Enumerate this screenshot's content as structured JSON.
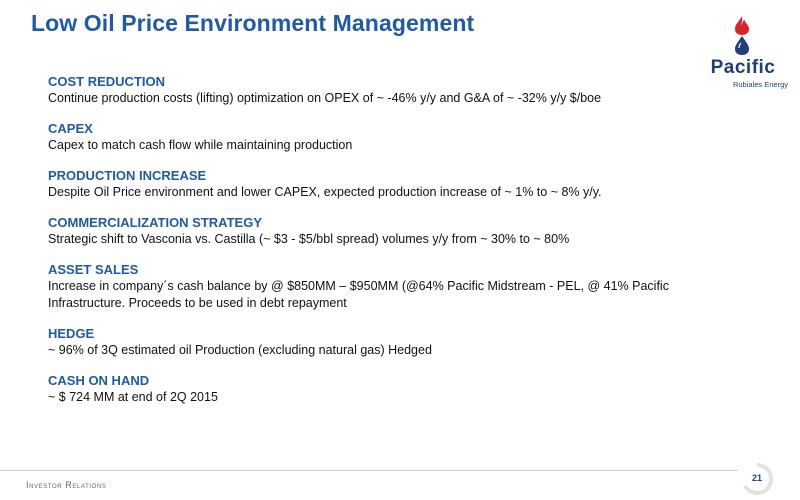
{
  "title": "Low Oil Price Environment Management",
  "logo": {
    "word": "Pacific",
    "subtitle": "Rubiales Energy",
    "colors": {
      "flame_red": "#d6262b",
      "drop_blue": "#1e3f78"
    }
  },
  "sections": [
    {
      "heading": "COST REDUCTION",
      "text": "Continue production costs (lifting) optimization on OPEX of ~ -46% y/y and G&A of ~ -32% y/y $/boe"
    },
    {
      "heading": "CAPEX",
      "text": "Capex to match cash flow while maintaining production"
    },
    {
      "heading": "PRODUCTION INCREASE",
      "text": "Despite Oil Price environment and lower CAPEX, expected production increase of ~ 1% to ~ 8% y/y."
    },
    {
      "heading": "COMMERCIALIZATION STRATEGY",
      "text": "Strategic shift to Vasconia vs. Castilla (~ $3 - $5/bbl spread) volumes y/y from ~ 30% to ~ 80%"
    },
    {
      "heading": "ASSET SALES",
      "text": "Increase in company´s cash balance by @ $850MM – $950MM (@64% Pacific Midstream - PEL, @ 41% Pacific Infrastructure. Proceeds to be used in debt repayment"
    },
    {
      "heading": "HEDGE",
      "text": "~ 96% of 3Q estimated oil Production (excluding natural gas) Hedged"
    },
    {
      "heading": "CASH ON HAND",
      "text": "~ $ 724 MM at end of 2Q 2015"
    }
  ],
  "footer": {
    "label": "Investor Relations",
    "page_number": "21"
  },
  "colors": {
    "accent": "#1f5aa6",
    "body_text": "#111111"
  }
}
